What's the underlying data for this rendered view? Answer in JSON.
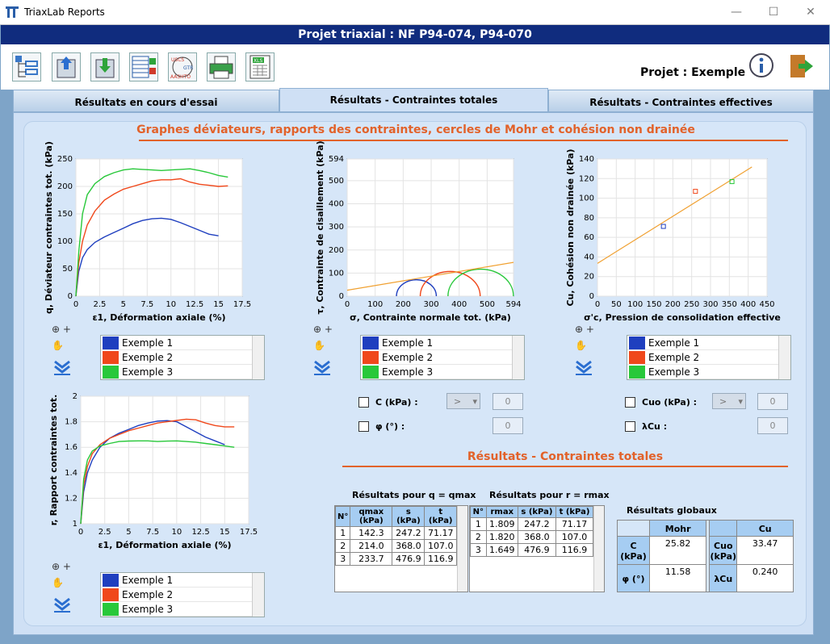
{
  "app": {
    "title": "TriaxLab Reports"
  },
  "project": {
    "title": "Projet triaxial : NF P94-074, P94-070",
    "label": "Projet : Exemple"
  },
  "toolbar": {
    "icons": [
      "tree-icon",
      "upload-icon",
      "download-icon",
      "table-edit-icon",
      "standards-icon",
      "print-icon",
      "excel-icon",
      "info-icon",
      "exit-icon"
    ],
    "std_labels": [
      "USCS",
      "GTR",
      "AASHTO"
    ],
    "xls_label": "XLS"
  },
  "tabs": [
    "Résultats en cours d'essai",
    "Résultats - Contraintes totales",
    "Résultats - Contraintes effectives"
  ],
  "section1": "Graphes déviateurs, rapports des contraintes, cercles de Mohr et cohésion non drainée",
  "section2": "Résultats - Contraintes totales",
  "colors": {
    "s1": "#1f3fbf",
    "s2": "#f0481b",
    "s3": "#28c83a",
    "line": "#f0a030"
  },
  "legend": [
    "Exemple 1",
    "Exemple 2",
    "Exemple 3"
  ],
  "chart_data": [
    {
      "type": "line",
      "xlabel": "ε1, Déformation axiale (%)",
      "ylabel": "q, Déviateur contraintes tot. (kPa)",
      "xticks": [
        "0",
        "2.5",
        "5",
        "7.5",
        "10",
        "12.5",
        "15",
        "17.5"
      ],
      "yticks": [
        "0",
        "50",
        "100",
        "150",
        "200",
        "250"
      ],
      "xlim": [
        0,
        17.5
      ],
      "ylim": [
        0,
        250
      ],
      "series": [
        {
          "name": "Exemple 1",
          "x": [
            0,
            0.3,
            0.7,
            1.2,
            2,
            3,
            4,
            5,
            6,
            7,
            8,
            9,
            10,
            11,
            12,
            13,
            14,
            15
          ],
          "y": [
            0,
            45,
            70,
            85,
            98,
            108,
            116,
            124,
            132,
            138,
            141,
            142,
            140,
            134,
            127,
            120,
            113,
            110
          ]
        },
        {
          "name": "Exemple 2",
          "x": [
            0,
            0.3,
            0.7,
            1.2,
            2,
            3,
            4,
            5,
            6,
            7,
            8,
            9,
            10,
            11,
            12,
            13,
            14,
            15,
            16
          ],
          "y": [
            0,
            60,
            100,
            130,
            155,
            175,
            186,
            195,
            200,
            205,
            210,
            212,
            212,
            214,
            208,
            204,
            202,
            200,
            201
          ]
        },
        {
          "name": "Exemple 3",
          "x": [
            0,
            0.3,
            0.7,
            1.2,
            2,
            3,
            4,
            5,
            6,
            7,
            8,
            9,
            10,
            11,
            12,
            13,
            14,
            15,
            16
          ],
          "y": [
            0,
            80,
            150,
            185,
            205,
            218,
            225,
            230,
            232,
            231,
            230,
            229,
            230,
            231,
            232,
            229,
            225,
            220,
            217
          ]
        }
      ]
    },
    {
      "type": "line",
      "xlabel": "σ, Contrainte normale tot. (kPa)",
      "ylabel": "τ, Contrainte de cisaillement (kPa)",
      "xticks": [
        "0",
        "100",
        "200",
        "300",
        "400",
        "500",
        "594"
      ],
      "yticks": [
        "0",
        "100",
        "200",
        "300",
        "400",
        "500",
        "594"
      ],
      "xlim": [
        0,
        594
      ],
      "ylim": [
        0,
        594
      ],
      "circles": [
        {
          "name": "Exemple 1",
          "s": 247.2,
          "t": 71.17
        },
        {
          "name": "Exemple 2",
          "s": 368.0,
          "t": 107.0
        },
        {
          "name": "Exemple 3",
          "s": 476.9,
          "t": 116.9
        }
      ],
      "fit": {
        "x": [
          0,
          594
        ],
        "y": [
          25.8,
          146.3
        ]
      }
    },
    {
      "type": "scatter",
      "xlabel": "σ'c, Pression de consolidation effective",
      "ylabel": "Cu, Cohésion non drainée (kPa)",
      "xticks": [
        "0",
        "50",
        "100",
        "150",
        "200",
        "250",
        "300",
        "350",
        "400",
        "450"
      ],
      "yticks": [
        "0",
        "20",
        "40",
        "60",
        "80",
        "100",
        "120",
        "140"
      ],
      "xlim": [
        0,
        450
      ],
      "ylim": [
        0,
        140
      ],
      "points": [
        {
          "name": "Exemple 1",
          "x": 175,
          "y": 71.2
        },
        {
          "name": "Exemple 2",
          "x": 260,
          "y": 107
        },
        {
          "name": "Exemple 3",
          "x": 357,
          "y": 116.9
        }
      ],
      "fit": {
        "x": [
          0,
          410
        ],
        "y": [
          33.5,
          131.9
        ]
      }
    },
    {
      "type": "line",
      "xlabel": "ε1, Déformation axiale (%)",
      "ylabel": "r, Rapport contraintes tot.",
      "xticks": [
        "0",
        "2.5",
        "5",
        "7.5",
        "10",
        "12.5",
        "15",
        "17.5"
      ],
      "yticks": [
        "1",
        "1.2",
        "1.4",
        "1.6",
        "1.8",
        "2"
      ],
      "xlim": [
        0,
        17.5
      ],
      "ylim": [
        1,
        2
      ],
      "series": [
        {
          "name": "Exemple 1",
          "x": [
            0,
            0.3,
            0.7,
            1.2,
            2,
            3,
            4,
            5,
            6,
            7,
            8,
            9,
            10,
            11,
            12,
            13,
            14,
            15
          ],
          "y": [
            1,
            1.25,
            1.4,
            1.5,
            1.6,
            1.67,
            1.71,
            1.74,
            1.77,
            1.79,
            1.805,
            1.809,
            1.8,
            1.76,
            1.72,
            1.68,
            1.65,
            1.62
          ]
        },
        {
          "name": "Exemple 2",
          "x": [
            0,
            0.3,
            0.7,
            1.2,
            2,
            3,
            4,
            5,
            6,
            7,
            8,
            9,
            10,
            11,
            12,
            13,
            14,
            15,
            16
          ],
          "y": [
            1,
            1.3,
            1.45,
            1.55,
            1.62,
            1.67,
            1.7,
            1.73,
            1.75,
            1.77,
            1.79,
            1.8,
            1.81,
            1.82,
            1.815,
            1.79,
            1.77,
            1.76,
            1.76
          ]
        },
        {
          "name": "Exemple 3",
          "x": [
            0,
            0.3,
            0.7,
            1.2,
            2,
            3,
            4,
            5,
            6,
            7,
            8,
            9,
            10,
            11,
            12,
            13,
            14,
            15,
            16
          ],
          "y": [
            1,
            1.35,
            1.5,
            1.57,
            1.61,
            1.63,
            1.645,
            1.649,
            1.65,
            1.65,
            1.645,
            1.648,
            1.65,
            1.645,
            1.64,
            1.63,
            1.62,
            1.61,
            1.6
          ]
        }
      ]
    }
  ],
  "mohr_params": {
    "c_label": "C (kPa) :",
    "phi_label": "φ (°) :",
    "dd": ">",
    "c_val": "0",
    "phi_val": "0"
  },
  "cu_params": {
    "cuo_label": "Cuo (kPa) :",
    "lcu_label": "λCu :",
    "dd": ">",
    "cuo_val": "0",
    "lcu_val": "0"
  },
  "table_q": {
    "caption": "Résultats pour q = qmax",
    "headers": [
      "N°",
      "qmax (kPa)",
      "s (kPa)",
      "t (kPa)"
    ],
    "rows": [
      [
        "1",
        "142.3",
        "247.2",
        "71.17"
      ],
      [
        "2",
        "214.0",
        "368.0",
        "107.0"
      ],
      [
        "3",
        "233.7",
        "476.9",
        "116.9"
      ]
    ]
  },
  "table_r": {
    "caption": "Résultats pour r = rmax",
    "headers": [
      "N°",
      "rmax",
      "s (kPa)",
      "t (kPa)"
    ],
    "rows": [
      [
        "1",
        "1.809",
        "247.2",
        "71.17"
      ],
      [
        "2",
        "1.820",
        "368.0",
        "107.0"
      ],
      [
        "3",
        "1.649",
        "476.9",
        "116.9"
      ]
    ]
  },
  "global": {
    "caption": "Résultats globaux",
    "mohr": "Mohr",
    "cu": "Cu",
    "c_label": "C (kPa)",
    "c_val": "25.82",
    "phi_label": "φ (°)",
    "phi_val": "11.58",
    "cuo_label": "Cuo (kPa)",
    "cuo_val": "33.47",
    "lcu_label": "λCu",
    "lcu_val": "0.240"
  }
}
